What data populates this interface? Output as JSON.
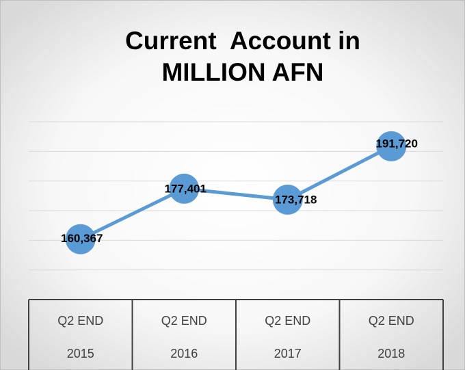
{
  "chart_data": {
    "type": "line",
    "title": [
      "Current  Account in",
      "MILLION AFN"
    ],
    "categories": [
      [
        "Q2 END",
        "2015"
      ],
      [
        "Q2 END",
        "2016"
      ],
      [
        "Q2 END",
        "2017"
      ],
      [
        "Q2 END",
        "2018"
      ]
    ],
    "series": [
      {
        "color": "#5b9bd5",
        "values": [
          160367,
          177401,
          173718,
          191720
        ],
        "value_labels": [
          "160,367",
          "177,401",
          "173,718",
          "191,720"
        ]
      }
    ],
    "ylim": [
      140000,
      200000
    ],
    "yticks": [
      140000,
      150000,
      160000,
      170000,
      180000,
      190000,
      200000
    ],
    "grid": true
  }
}
